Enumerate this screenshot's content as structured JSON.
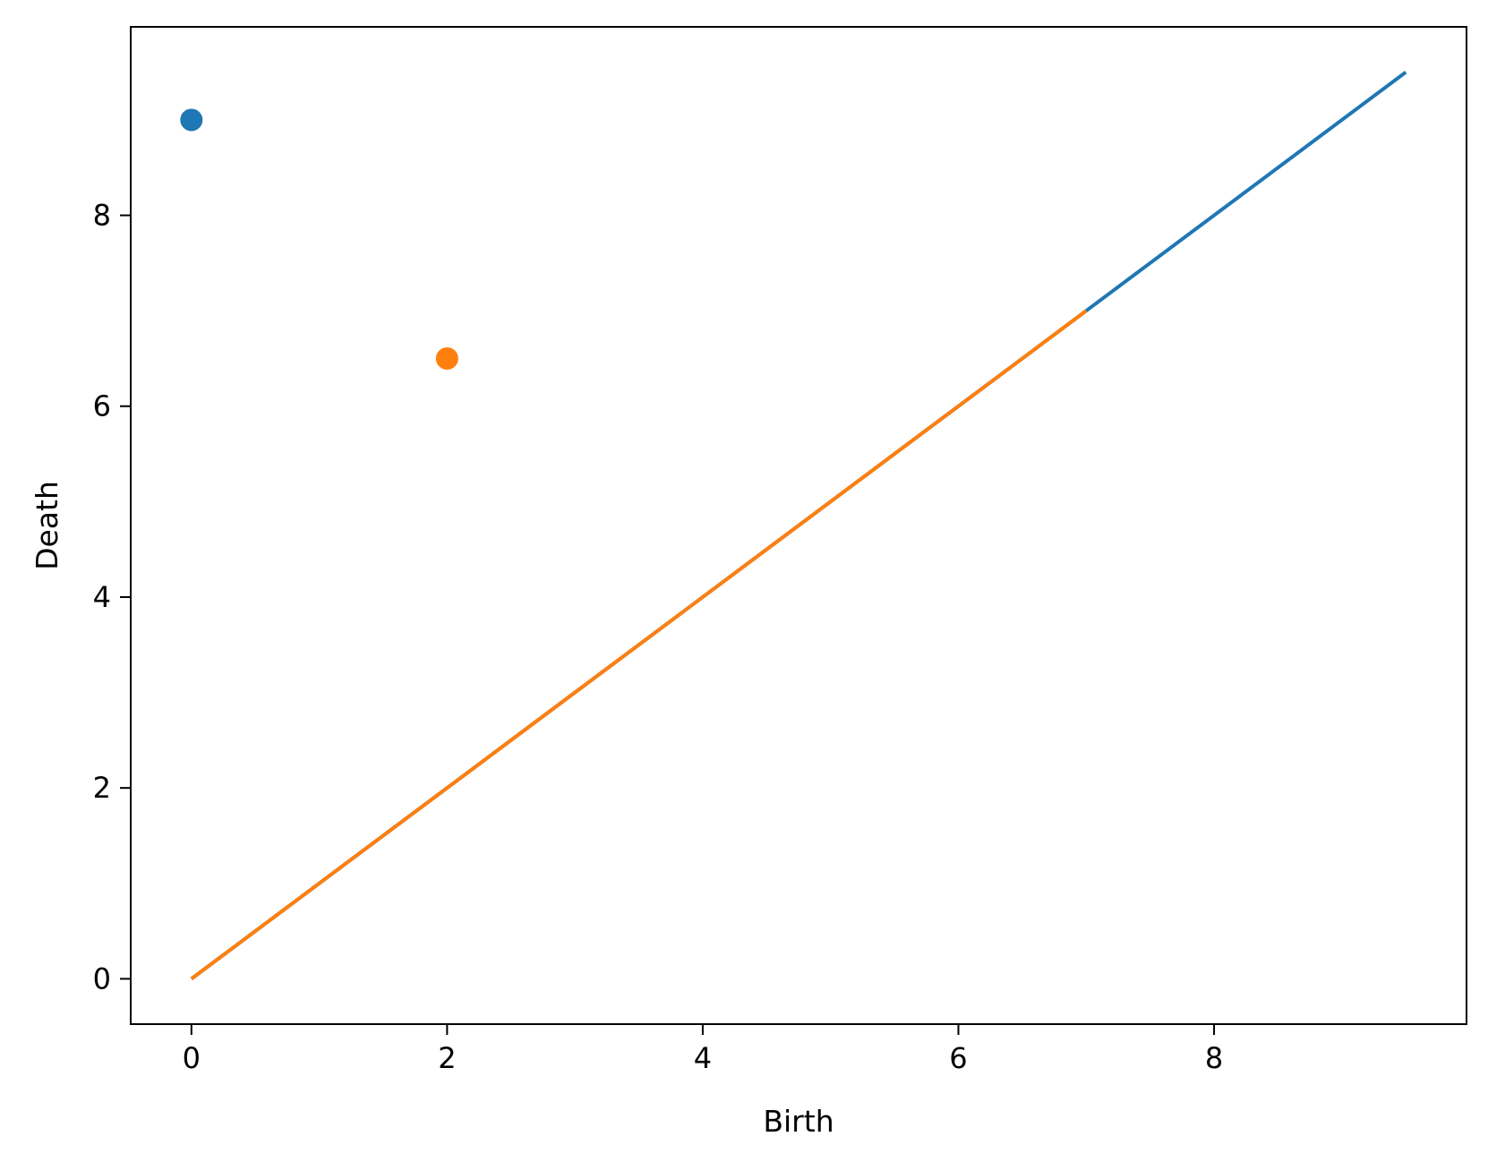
{
  "chart_data": {
    "type": "scatter",
    "title": "",
    "xlabel": "Birth",
    "ylabel": "Death",
    "xlim": [
      -0.475,
      9.975
    ],
    "ylim": [
      -0.475,
      9.975
    ],
    "x_ticks": [
      0,
      2,
      4,
      6,
      8
    ],
    "y_ticks": [
      0,
      2,
      4,
      6,
      8
    ],
    "grid": false,
    "legend": "none",
    "series": [
      {
        "color": "#1f77b4",
        "points": [
          {
            "x": 0,
            "y": 9
          }
        ],
        "diagonal": [
          0,
          9.5
        ]
      },
      {
        "color": "#ff7f0e",
        "points": [
          {
            "x": 2,
            "y": 6.5
          }
        ],
        "diagonal": [
          0,
          7
        ]
      }
    ]
  }
}
